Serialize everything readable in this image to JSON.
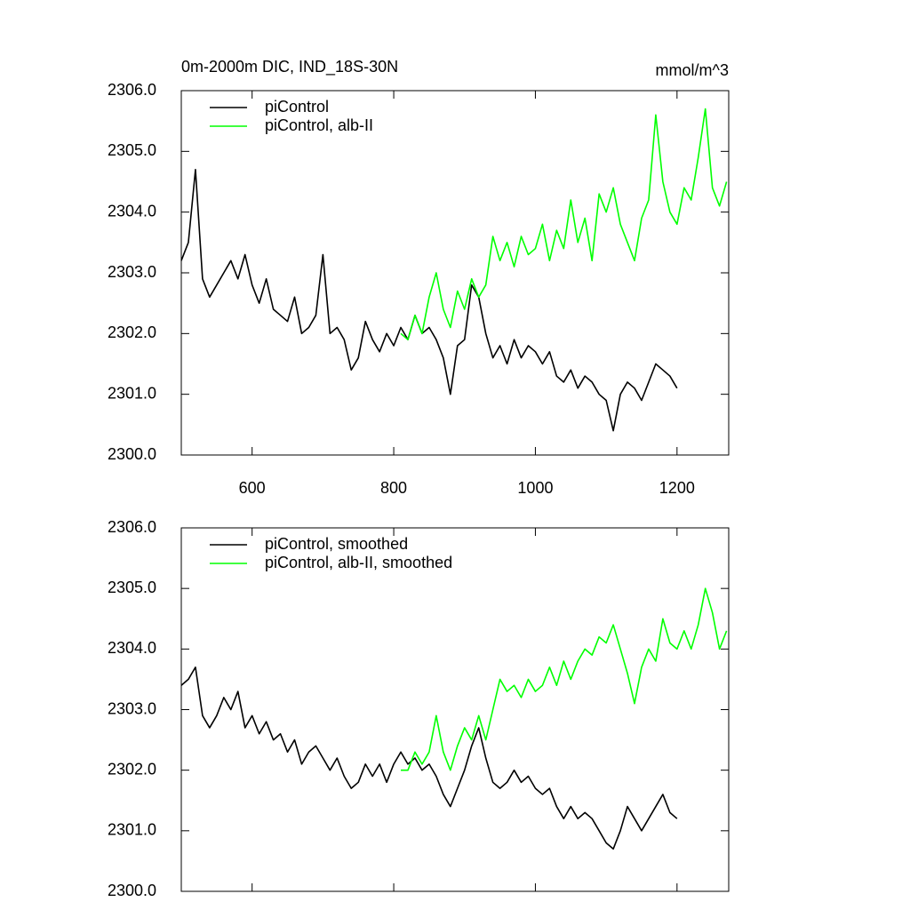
{
  "chart_data": [
    {
      "type": "line",
      "title": "0m-2000m DIC, IND_18S-30N",
      "units": "mmol/m^3",
      "xlim": [
        500,
        1273
      ],
      "xticks": [
        600,
        800,
        1000,
        1200
      ],
      "show_xtick_labels": true,
      "ylim": [
        2300,
        2306
      ],
      "yticks": [
        {
          "value": 2300,
          "label": "2300.0"
        },
        {
          "value": 2301,
          "label": "2301.0"
        },
        {
          "value": 2302,
          "label": "2302.0"
        },
        {
          "value": 2303,
          "label": "2303.0"
        },
        {
          "value": 2304,
          "label": "2304.0"
        },
        {
          "value": 2305,
          "label": "2305.0"
        },
        {
          "value": 2306,
          "label": "2306.0"
        }
      ],
      "legend": "top-left",
      "series": [
        {
          "name": "piControl",
          "color": "#000000",
          "x": [
            500,
            510,
            520,
            530,
            540,
            550,
            560,
            570,
            580,
            590,
            600,
            610,
            620,
            630,
            640,
            650,
            660,
            670,
            680,
            690,
            700,
            710,
            720,
            730,
            740,
            750,
            760,
            770,
            780,
            790,
            800,
            810,
            820,
            830,
            840,
            850,
            860,
            870,
            880,
            890,
            900,
            910,
            920,
            930,
            940,
            950,
            960,
            970,
            980,
            990,
            1000,
            1010,
            1020,
            1030,
            1040,
            1050,
            1060,
            1070,
            1080,
            1090,
            1100,
            1110,
            1120,
            1130,
            1140,
            1150,
            1160,
            1170,
            1180,
            1190,
            1200
          ],
          "values": [
            2303.2,
            2303.5,
            2304.7,
            2302.9,
            2302.6,
            2302.8,
            2303.0,
            2303.2,
            2302.9,
            2303.3,
            2302.8,
            2302.5,
            2302.9,
            2302.4,
            2302.3,
            2302.2,
            2302.6,
            2302.0,
            2302.1,
            2302.3,
            2303.3,
            2302.0,
            2302.1,
            2301.9,
            2301.4,
            2301.6,
            2302.2,
            2301.9,
            2301.7,
            2302.0,
            2301.8,
            2302.1,
            2301.9,
            2302.3,
            2302.0,
            2302.1,
            2301.9,
            2301.6,
            2301.0,
            2301.8,
            2301.9,
            2302.8,
            2302.6,
            2302.0,
            2301.6,
            2301.8,
            2301.5,
            2301.9,
            2301.6,
            2301.8,
            2301.7,
            2301.5,
            2301.7,
            2301.3,
            2301.2,
            2301.4,
            2301.1,
            2301.3,
            2301.2,
            2301.0,
            2300.9,
            2300.4,
            2301.0,
            2301.2,
            2301.1,
            2300.9,
            2301.2,
            2301.5,
            2301.4,
            2301.3,
            2301.1
          ]
        },
        {
          "name": "piControl, alb-II",
          "color": "#00ff00",
          "x": [
            810,
            820,
            830,
            840,
            850,
            860,
            870,
            880,
            890,
            900,
            910,
            920,
            930,
            940,
            950,
            960,
            970,
            980,
            990,
            1000,
            1010,
            1020,
            1030,
            1040,
            1050,
            1060,
            1070,
            1080,
            1090,
            1100,
            1110,
            1120,
            1130,
            1140,
            1150,
            1160,
            1170,
            1180,
            1190,
            1200,
            1210,
            1220,
            1230,
            1240,
            1250,
            1260,
            1270
          ],
          "values": [
            2302.0,
            2301.9,
            2302.3,
            2302.0,
            2302.6,
            2303.0,
            2302.4,
            2302.1,
            2302.7,
            2302.4,
            2302.9,
            2302.6,
            2302.8,
            2303.6,
            2303.2,
            2303.5,
            2303.1,
            2303.6,
            2303.3,
            2303.4,
            2303.8,
            2303.2,
            2303.7,
            2303.4,
            2304.2,
            2303.5,
            2303.9,
            2303.2,
            2304.3,
            2304.0,
            2304.4,
            2303.8,
            2303.5,
            2303.2,
            2303.9,
            2304.2,
            2305.6,
            2304.5,
            2304.0,
            2303.8,
            2304.4,
            2304.2,
            2304.9,
            2305.7,
            2304.4,
            2304.1,
            2304.5
          ]
        }
      ]
    },
    {
      "type": "line",
      "xlim": [
        500,
        1273
      ],
      "xticks": [
        600,
        800,
        1000,
        1200
      ],
      "show_xtick_labels": false,
      "ylim": [
        2300,
        2306
      ],
      "yticks": [
        {
          "value": 2300,
          "label": "2300.0"
        },
        {
          "value": 2301,
          "label": "2301.0"
        },
        {
          "value": 2302,
          "label": "2302.0"
        },
        {
          "value": 2303,
          "label": "2303.0"
        },
        {
          "value": 2304,
          "label": "2304.0"
        },
        {
          "value": 2305,
          "label": "2305.0"
        },
        {
          "value": 2306,
          "label": "2306.0"
        }
      ],
      "legend": "top-left",
      "series": [
        {
          "name": "piControl, smoothed",
          "color": "#000000",
          "x": [
            500,
            510,
            520,
            530,
            540,
            550,
            560,
            570,
            580,
            590,
            600,
            610,
            620,
            630,
            640,
            650,
            660,
            670,
            680,
            690,
            700,
            710,
            720,
            730,
            740,
            750,
            760,
            770,
            780,
            790,
            800,
            810,
            820,
            830,
            840,
            850,
            860,
            870,
            880,
            890,
            900,
            910,
            920,
            930,
            940,
            950,
            960,
            970,
            980,
            990,
            1000,
            1010,
            1020,
            1030,
            1040,
            1050,
            1060,
            1070,
            1080,
            1090,
            1100,
            1110,
            1120,
            1130,
            1140,
            1150,
            1160,
            1170,
            1180,
            1190,
            1200
          ],
          "values": [
            2303.4,
            2303.5,
            2303.7,
            2302.9,
            2302.7,
            2302.9,
            2303.2,
            2303.0,
            2303.3,
            2302.7,
            2302.9,
            2302.6,
            2302.8,
            2302.5,
            2302.6,
            2302.3,
            2302.5,
            2302.1,
            2302.3,
            2302.4,
            2302.2,
            2302.0,
            2302.2,
            2301.9,
            2301.7,
            2301.8,
            2302.1,
            2301.9,
            2302.1,
            2301.8,
            2302.1,
            2302.3,
            2302.1,
            2302.2,
            2302.0,
            2302.1,
            2301.9,
            2301.6,
            2301.4,
            2301.7,
            2302.0,
            2302.4,
            2302.7,
            2302.2,
            2301.8,
            2301.7,
            2301.8,
            2302.0,
            2301.8,
            2301.9,
            2301.7,
            2301.6,
            2301.7,
            2301.4,
            2301.2,
            2301.4,
            2301.2,
            2301.3,
            2301.2,
            2301.0,
            2300.8,
            2300.7,
            2301.0,
            2301.4,
            2301.2,
            2301.0,
            2301.2,
            2301.4,
            2301.6,
            2301.3,
            2301.2
          ]
        },
        {
          "name": "piControl, alb-II, smoothed",
          "color": "#00ff00",
          "x": [
            810,
            820,
            830,
            840,
            850,
            860,
            870,
            880,
            890,
            900,
            910,
            920,
            930,
            940,
            950,
            960,
            970,
            980,
            990,
            1000,
            1010,
            1020,
            1030,
            1040,
            1050,
            1060,
            1070,
            1080,
            1090,
            1100,
            1110,
            1120,
            1130,
            1140,
            1150,
            1160,
            1170,
            1180,
            1190,
            1200,
            1210,
            1220,
            1230,
            1240,
            1250,
            1260,
            1270
          ],
          "values": [
            2302.0,
            2302.0,
            2302.3,
            2302.1,
            2302.3,
            2302.9,
            2302.3,
            2302.0,
            2302.4,
            2302.7,
            2302.5,
            2302.9,
            2302.5,
            2303.0,
            2303.5,
            2303.3,
            2303.4,
            2303.2,
            2303.5,
            2303.3,
            2303.4,
            2303.7,
            2303.4,
            2303.8,
            2303.5,
            2303.8,
            2304.0,
            2303.9,
            2304.2,
            2304.1,
            2304.4,
            2304.0,
            2303.6,
            2303.1,
            2303.7,
            2304.0,
            2303.8,
            2304.5,
            2304.1,
            2304.0,
            2304.3,
            2304.0,
            2304.4,
            2305.0,
            2304.6,
            2304.0,
            2304.3
          ]
        }
      ]
    }
  ]
}
